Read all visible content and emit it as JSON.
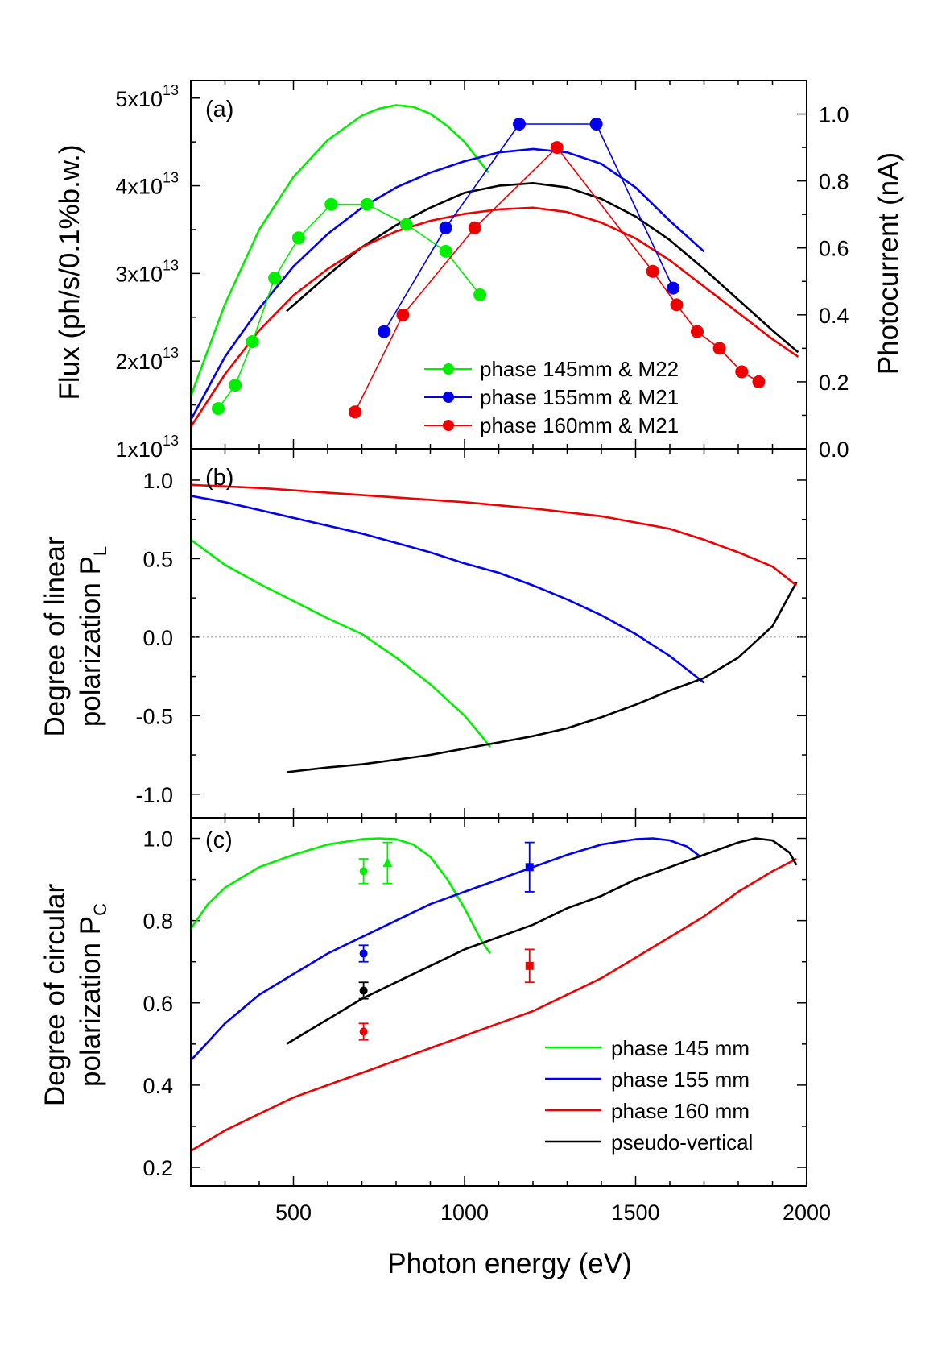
{
  "chart_data": [
    {
      "panel": "(a)",
      "type": "line",
      "ylabel": "Flux (ph/s/0.1%b.w.)",
      "ylabel_right": "Photocurrent (nA)",
      "xlim": [
        200,
        2000
      ],
      "ylim": [
        10000000000000.0,
        52000000000000.0
      ],
      "ylim_right": [
        0,
        1.1
      ],
      "yticks": [
        10000000000000.0,
        20000000000000.0,
        30000000000000.0,
        40000000000000.0,
        50000000000000.0
      ],
      "ytick_labels": [
        {
          "mant": "1x10",
          "exp": "13"
        },
        {
          "mant": "2x10",
          "exp": "13"
        },
        {
          "mant": "3x10",
          "exp": "13"
        },
        {
          "mant": "4x10",
          "exp": "13"
        },
        {
          "mant": "5x10",
          "exp": "13"
        }
      ],
      "yticks_right": [
        "0.0",
        "0.2",
        "0.4",
        "0.6",
        "0.8",
        "1.0"
      ],
      "series": [
        {
          "color": "#00ee00",
          "axis": "left",
          "x": [
            200,
            300,
            400,
            500,
            600,
            700,
            750,
            800,
            850,
            900,
            950,
            1000,
            1050,
            1070
          ],
          "y": [
            16000000000000.0,
            26500000000000.0,
            35000000000000.0,
            41000000000000.0,
            45200000000000.0,
            48000000000000.0,
            48800000000000.0,
            49200000000000.0,
            49000000000000.0,
            48200000000000.0,
            46800000000000.0,
            45000000000000.0,
            42500000000000.0,
            41500000000000.0
          ]
        },
        {
          "color": "#0000ee",
          "axis": "left",
          "x": [
            200,
            300,
            400,
            500,
            600,
            700,
            800,
            900,
            1000,
            1100,
            1200,
            1300,
            1400,
            1500,
            1600,
            1700
          ],
          "y": [
            13300000000000.0,
            20500000000000.0,
            26000000000000.0,
            30800000000000.0,
            34500000000000.0,
            37500000000000.0,
            39800000000000.0,
            41500000000000.0,
            42800000000000.0,
            43800000000000.0,
            44200000000000.0,
            43800000000000.0,
            42500000000000.0,
            39800000000000.0,
            36000000000000.0,
            32500000000000.0
          ]
        },
        {
          "color": "#000000",
          "axis": "left",
          "x": [
            480,
            600,
            700,
            800,
            900,
            1000,
            1100,
            1200,
            1300,
            1400,
            1500,
            1600,
            1700,
            1800,
            1900,
            1975
          ],
          "y": [
            25700000000000.0,
            29800000000000.0,
            33000000000000.0,
            35500000000000.0,
            37500000000000.0,
            39200000000000.0,
            40000000000000.0,
            40300000000000.0,
            39800000000000.0,
            38500000000000.0,
            36500000000000.0,
            33800000000000.0,
            30500000000000.0,
            27000000000000.0,
            23500000000000.0,
            21000000000000.0
          ]
        },
        {
          "color": "#ee0000",
          "axis": "left",
          "x": [
            200,
            300,
            400,
            500,
            600,
            700,
            800,
            900,
            1000,
            1100,
            1200,
            1300,
            1400,
            1500,
            1600,
            1700,
            1800,
            1900,
            1975
          ],
          "y": [
            12500000000000.0,
            18500000000000.0,
            23500000000000.0,
            27500000000000.0,
            30500000000000.0,
            33000000000000.0,
            34800000000000.0,
            36000000000000.0,
            36800000000000.0,
            37300000000000.0,
            37500000000000.0,
            37000000000000.0,
            35800000000000.0,
            34000000000000.0,
            31500000000000.0,
            28500000000000.0,
            25500000000000.0,
            22500000000000.0,
            20500000000000.0
          ]
        },
        {
          "name": "phase 145mm & M22",
          "color": "#00ee00",
          "axis": "right",
          "markers": true,
          "x": [
            280,
            330,
            380,
            445,
            515,
            610,
            715,
            830,
            945,
            1045
          ],
          "y": [
            0.12,
            0.19,
            0.32,
            0.51,
            0.63,
            0.73,
            0.73,
            0.67,
            0.59,
            0.46
          ]
        },
        {
          "name": "phase 155mm & M21",
          "color": "#0000ee",
          "axis": "right",
          "markers": true,
          "x": [
            765,
            945,
            1160,
            1385,
            1610
          ],
          "y": [
            0.35,
            0.66,
            0.97,
            0.97,
            0.48
          ]
        },
        {
          "name": "phase 160mm & M21",
          "color": "#ee0000",
          "axis": "right",
          "markers": true,
          "x": [
            680,
            820,
            1030,
            1270,
            1550,
            1620,
            1680,
            1745,
            1810,
            1860
          ],
          "y": [
            0.11,
            0.4,
            0.66,
            0.9,
            0.53,
            0.43,
            0.35,
            0.3,
            0.23,
            0.2
          ]
        }
      ]
    },
    {
      "panel": "(b)",
      "type": "line",
      "ylabel_line1": "Degree of linear",
      "ylabel_line2": "polarization  P",
      "ylabel_sub": "L",
      "xlim": [
        200,
        2000
      ],
      "ylim": [
        -1.15,
        1.2
      ],
      "yticks": [
        "-1.0",
        "-0.5",
        "0.0",
        "0.5",
        "1.0"
      ],
      "zero_line": true,
      "series": [
        {
          "color": "#00ee00",
          "x": [
            200,
            300,
            400,
            500,
            600,
            700,
            800,
            900,
            1000,
            1050,
            1075
          ],
          "y": [
            0.62,
            0.46,
            0.34,
            0.23,
            0.12,
            0.02,
            -0.13,
            -0.3,
            -0.5,
            -0.63,
            -0.7
          ]
        },
        {
          "color": "#0000ee",
          "x": [
            200,
            300,
            400,
            500,
            600,
            700,
            800,
            900,
            1000,
            1100,
            1200,
            1300,
            1400,
            1500,
            1600,
            1700
          ],
          "y": [
            0.9,
            0.86,
            0.81,
            0.76,
            0.71,
            0.66,
            0.6,
            0.54,
            0.47,
            0.41,
            0.33,
            0.24,
            0.14,
            0.02,
            -0.12,
            -0.29
          ]
        },
        {
          "color": "#000000",
          "x": [
            480,
            600,
            700,
            800,
            900,
            1000,
            1100,
            1200,
            1300,
            1400,
            1500,
            1600,
            1700,
            1800,
            1900,
            1970
          ],
          "y": [
            -0.86,
            -0.83,
            -0.81,
            -0.78,
            -0.75,
            -0.71,
            -0.67,
            -0.63,
            -0.58,
            -0.51,
            -0.43,
            -0.34,
            -0.26,
            -0.13,
            0.07,
            0.35
          ]
        },
        {
          "color": "#ee0000",
          "x": [
            200,
            400,
            600,
            800,
            1000,
            1200,
            1400,
            1600,
            1700,
            1800,
            1900,
            1970
          ],
          "y": [
            0.97,
            0.95,
            0.92,
            0.89,
            0.86,
            0.82,
            0.77,
            0.69,
            0.62,
            0.54,
            0.45,
            0.33
          ]
        }
      ]
    },
    {
      "panel": "(c)",
      "type": "line",
      "ylabel_line1": "Degree of circular",
      "ylabel_line2": "polarization  P",
      "ylabel_sub": "C",
      "xlabel": "Photon energy (eV)",
      "xlim": [
        200,
        2000
      ],
      "ylim": [
        0.155,
        1.05
      ],
      "xticks": [
        "500",
        "1000",
        "1500",
        "2000"
      ],
      "yticks": [
        "0.2",
        "0.4",
        "0.6",
        "0.8",
        "1.0"
      ],
      "series": [
        {
          "name": "phase 145 mm",
          "color": "#00ee00",
          "x": [
            200,
            250,
            300,
            400,
            500,
            600,
            700,
            750,
            800,
            850,
            900,
            950,
            1000,
            1050,
            1075
          ],
          "y": [
            0.78,
            0.84,
            0.88,
            0.93,
            0.96,
            0.985,
            0.998,
            1.0,
            0.998,
            0.985,
            0.955,
            0.9,
            0.83,
            0.75,
            0.72
          ]
        },
        {
          "name": "phase 155 mm",
          "color": "#0000ee",
          "x": [
            200,
            300,
            400,
            500,
            600,
            700,
            800,
            900,
            1000,
            1100,
            1200,
            1300,
            1400,
            1500,
            1550,
            1600,
            1650,
            1690
          ],
          "y": [
            0.46,
            0.55,
            0.62,
            0.67,
            0.72,
            0.76,
            0.8,
            0.84,
            0.87,
            0.9,
            0.93,
            0.96,
            0.985,
            0.998,
            1.0,
            0.995,
            0.98,
            0.955
          ]
        },
        {
          "name": "phase 160 mm",
          "color": "#ee0000",
          "x": [
            200,
            300,
            400,
            500,
            600,
            700,
            800,
            900,
            1000,
            1100,
            1200,
            1300,
            1400,
            1500,
            1600,
            1700,
            1800,
            1900,
            1970
          ],
          "y": [
            0.24,
            0.29,
            0.33,
            0.37,
            0.4,
            0.43,
            0.46,
            0.49,
            0.52,
            0.55,
            0.58,
            0.62,
            0.66,
            0.71,
            0.76,
            0.81,
            0.87,
            0.92,
            0.95
          ]
        },
        {
          "name": "pseudo-vertical",
          "color": "#000000",
          "x": [
            480,
            600,
            700,
            800,
            900,
            1000,
            1100,
            1200,
            1300,
            1400,
            1500,
            1600,
            1700,
            1800,
            1850,
            1900,
            1950,
            1970
          ],
          "y": [
            0.5,
            0.56,
            0.61,
            0.65,
            0.69,
            0.73,
            0.76,
            0.79,
            0.83,
            0.86,
            0.9,
            0.93,
            0.96,
            0.99,
            1.0,
            0.995,
            0.965,
            0.935
          ]
        }
      ],
      "measurements": [
        {
          "color": "#00ee00",
          "shape": "circle",
          "x": 705,
          "y": 0.92,
          "err": 0.03
        },
        {
          "color": "#00ee00",
          "shape": "triangle",
          "x": 775,
          "y": 0.94,
          "err": 0.05
        },
        {
          "color": "#0000ee",
          "shape": "circle",
          "x": 705,
          "y": 0.72,
          "err": 0.02
        },
        {
          "color": "#000000",
          "shape": "circle",
          "x": 705,
          "y": 0.63,
          "err": 0.02
        },
        {
          "color": "#ee0000",
          "shape": "circle",
          "x": 705,
          "y": 0.53,
          "err": 0.02
        },
        {
          "color": "#0000ee",
          "shape": "square",
          "x": 1190,
          "y": 0.93,
          "err": 0.06
        },
        {
          "color": "#ee0000",
          "shape": "square",
          "x": 1190,
          "y": 0.69,
          "err": 0.04
        }
      ]
    }
  ]
}
